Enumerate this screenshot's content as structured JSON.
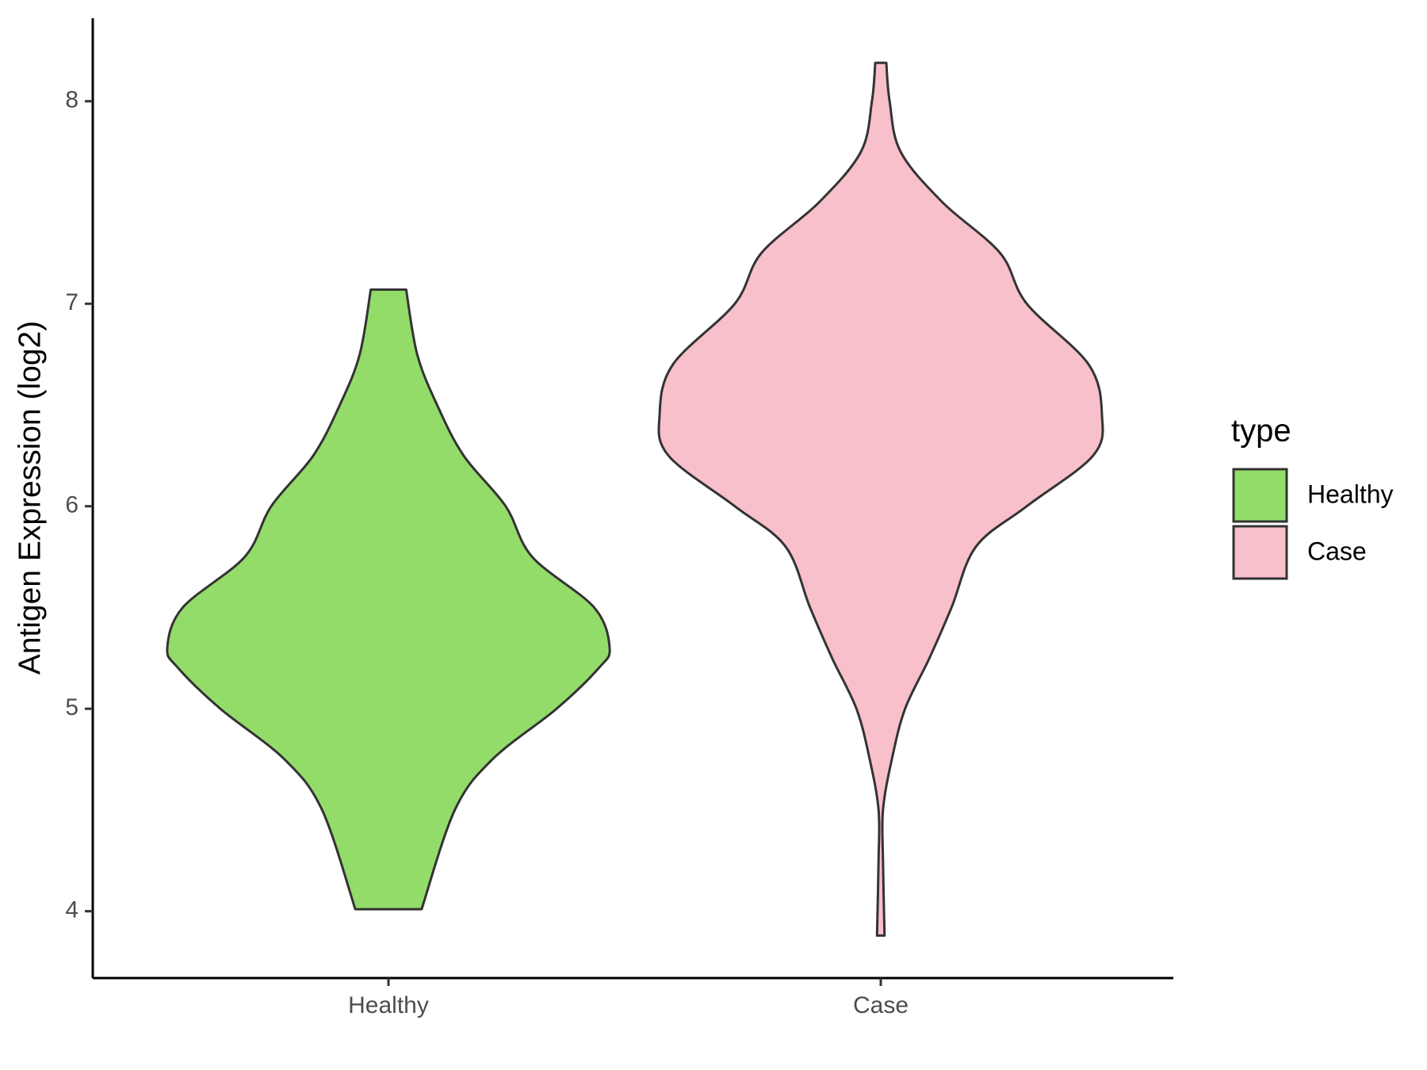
{
  "chart_data": {
    "type": "violin",
    "ylabel": "Antigen Expression (log2)",
    "categories": [
      "Healthy",
      "Case"
    ],
    "legend_title": "type",
    "legend_position": "right",
    "ylim": [
      3.67,
      8.41
    ],
    "yticks": [
      4,
      5,
      6,
      7,
      8
    ],
    "grid": false,
    "series": [
      {
        "name": "Healthy",
        "color": "#93dc6a",
        "y": [
          4.01,
          4.5,
          4.75,
          5.0,
          5.2,
          5.3,
          5.5,
          5.75,
          6.0,
          6.25,
          6.5,
          6.75,
          7.07
        ],
        "density": [
          0.15,
          0.3,
          0.47,
          0.76,
          0.95,
          1.0,
          0.93,
          0.65,
          0.53,
          0.34,
          0.22,
          0.13,
          0.08
        ]
      },
      {
        "name": "Case",
        "color": "#f7c0cb",
        "y": [
          3.88,
          4.25,
          4.5,
          4.75,
          5.0,
          5.25,
          5.5,
          5.8,
          6.0,
          6.25,
          6.45,
          6.7,
          7.0,
          7.25,
          7.5,
          7.75,
          8.0,
          8.19
        ],
        "density": [
          0.017,
          0.01,
          0.01,
          0.05,
          0.11,
          0.22,
          0.32,
          0.43,
          0.66,
          0.96,
          1.0,
          0.94,
          0.66,
          0.54,
          0.28,
          0.09,
          0.04,
          0.025
        ]
      }
    ]
  }
}
